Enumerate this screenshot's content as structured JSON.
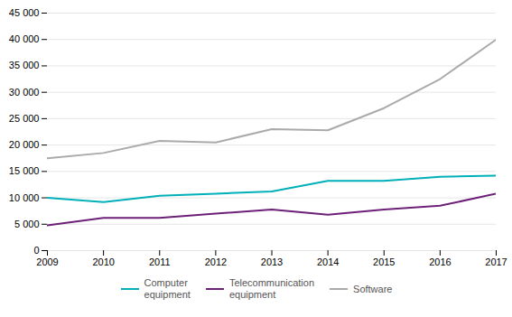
{
  "chart_data": {
    "type": "line",
    "x": [
      2009,
      2010,
      2011,
      2012,
      2013,
      2014,
      2015,
      2016,
      2017
    ],
    "series": [
      {
        "name": "Computer\nequipment",
        "color": "#00b0b9",
        "values": [
          10000,
          9200,
          10400,
          10800,
          11200,
          13200,
          13200,
          14000,
          14200
        ]
      },
      {
        "name": "Telecommunication\nequipment",
        "color": "#6d2077",
        "values": [
          4800,
          6200,
          6200,
          7000,
          7800,
          6800,
          7800,
          8500,
          10800
        ]
      },
      {
        "name": "Software",
        "color": "#aaaaaa",
        "values": [
          17500,
          18500,
          20800,
          20500,
          23000,
          22800,
          27000,
          32500,
          40000
        ]
      }
    ],
    "xlim": [
      2009,
      2017
    ],
    "xticks": [
      2009,
      2010,
      2011,
      2012,
      2013,
      2014,
      2015,
      2016,
      2017
    ],
    "ylim": [
      0,
      45000
    ],
    "yticks": [
      0,
      {
        "value": 5000,
        "label": "5 000"
      },
      {
        "value": 10000,
        "label": "10 000"
      },
      {
        "value": 15000,
        "label": "15 000"
      },
      {
        "value": 20000,
        "label": "20 000"
      },
      {
        "value": 25000,
        "label": "25 000"
      },
      {
        "value": 30000,
        "label": "30 000"
      },
      {
        "value": 35000,
        "label": "35 000"
      },
      {
        "value": 40000,
        "label": "40 000"
      },
      {
        "value": 45000,
        "label": "45 000"
      }
    ],
    "grid": true,
    "legend": "bottom"
  }
}
